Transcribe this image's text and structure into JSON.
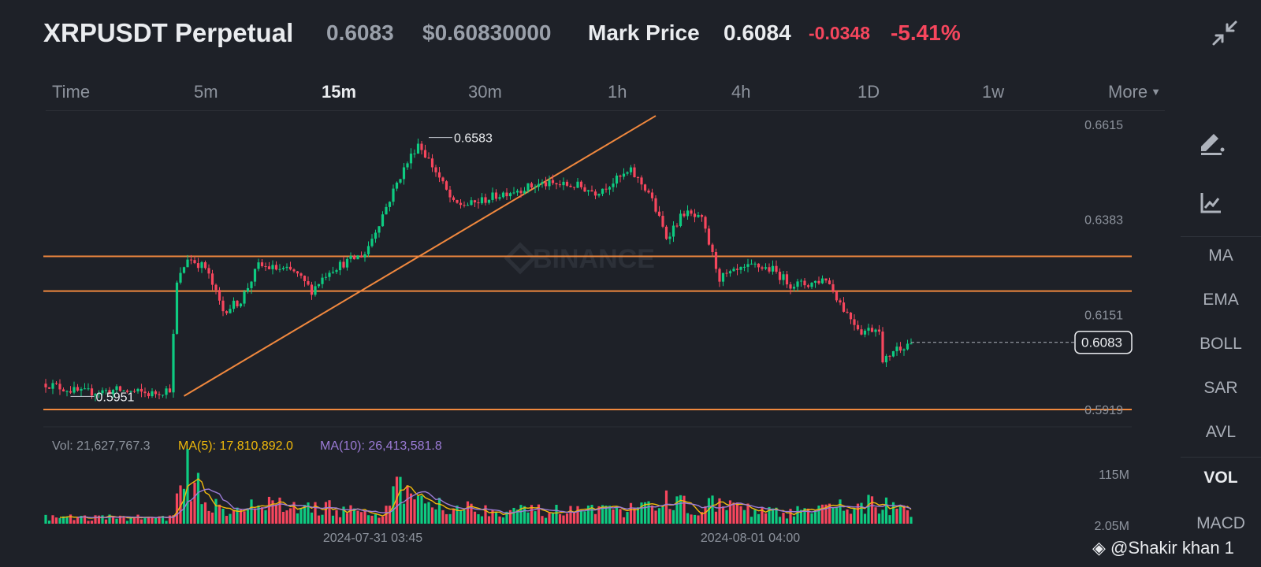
{
  "header": {
    "title": "XRPUSDT Perpetual",
    "last_price": "0.6083",
    "usd_price": "$0.60830000",
    "mark_price_label": "Mark Price",
    "mark_price": "0.6084",
    "change": "-0.0348",
    "change_pct": "-5.41%"
  },
  "tabs": [
    {
      "label": "Time",
      "active": false
    },
    {
      "label": "5m",
      "active": false
    },
    {
      "label": "15m",
      "active": true
    },
    {
      "label": "30m",
      "active": false
    },
    {
      "label": "1h",
      "active": false
    },
    {
      "label": "4h",
      "active": false
    },
    {
      "label": "1D",
      "active": false
    },
    {
      "label": "1w",
      "active": false
    },
    {
      "label": "More",
      "active": false
    }
  ],
  "indicators": [
    {
      "label": "MA",
      "active": false
    },
    {
      "label": "EMA",
      "active": false
    },
    {
      "label": "BOLL",
      "active": false
    },
    {
      "label": "SAR",
      "active": false
    },
    {
      "label": "AVL",
      "active": false
    },
    {
      "label": "VOL",
      "active": true
    },
    {
      "label": "MACD",
      "active": false
    }
  ],
  "tools": [
    "pencil-icon",
    "trend-chart-icon",
    "collapse-icon"
  ],
  "volume": {
    "label": "Vol: 21,627,767.3",
    "ma5": "MA(5): 17,810,892.0",
    "ma10": "MA(10): 26,413,581.8",
    "ma5_color": "#f0b90b",
    "ma10_color": "#9b7bd6",
    "axis_labels": [
      "115M",
      "2.05M"
    ]
  },
  "watermark": "BINANCE",
  "credit": "@Shakir khan 1",
  "colors": {
    "up": "#0ecb81",
    "down": "#f6465d",
    "lines": "#f0883e",
    "bg": "#1e2128"
  },
  "chart_data": {
    "type": "candlestick",
    "symbol": "XRPUSDT",
    "interval": "15m",
    "y_ticks": [
      "0.6615",
      "0.6383",
      "0.6151",
      "0.5919"
    ],
    "ylim": [
      0.5919,
      0.6615
    ],
    "x_ticks": [
      "2024-07-31 03:45",
      "2024-08-01 04:00"
    ],
    "current_price": "0.6083",
    "annotations": {
      "high": "0.6583",
      "low": "0.5951"
    },
    "horizontal_lines": [
      0.6293,
      0.6208,
      0.5919
    ],
    "trendline": {
      "from": 0.5952,
      "to": 0.6636
    },
    "close_path": [
      [
        0,
        0.5982
      ],
      [
        10,
        0.596
      ],
      [
        20,
        0.5966
      ],
      [
        30,
        0.5957
      ],
      [
        35,
        0.597
      ],
      [
        37,
        0.6225
      ],
      [
        40,
        0.629
      ],
      [
        45,
        0.6265
      ],
      [
        50,
        0.616
      ],
      [
        55,
        0.6185
      ],
      [
        60,
        0.627
      ],
      [
        70,
        0.6255
      ],
      [
        75,
        0.621
      ],
      [
        80,
        0.626
      ],
      [
        90,
        0.63
      ],
      [
        100,
        0.649
      ],
      [
        105,
        0.657
      ],
      [
        110,
        0.65
      ],
      [
        115,
        0.642
      ],
      [
        120,
        0.642
      ],
      [
        130,
        0.645
      ],
      [
        140,
        0.647
      ],
      [
        150,
        0.6465
      ],
      [
        155,
        0.645
      ],
      [
        160,
        0.6475
      ],
      [
        165,
        0.65
      ],
      [
        170,
        0.645
      ],
      [
        175,
        0.634
      ],
      [
        180,
        0.64
      ],
      [
        185,
        0.638
      ],
      [
        190,
        0.624
      ],
      [
        200,
        0.627
      ],
      [
        205,
        0.626
      ],
      [
        210,
        0.6225
      ],
      [
        215,
        0.6225
      ],
      [
        220,
        0.624
      ],
      [
        225,
        0.6165
      ],
      [
        230,
        0.611
      ],
      [
        235,
        0.612
      ],
      [
        236,
        0.603
      ],
      [
        239,
        0.6065
      ],
      [
        244,
        0.6083
      ]
    ],
    "volume_path": [
      [
        0,
        4
      ],
      [
        36,
        4
      ],
      [
        38,
        28
      ],
      [
        40,
        32
      ],
      [
        44,
        18
      ],
      [
        50,
        10
      ],
      [
        60,
        12
      ],
      [
        80,
        10
      ],
      [
        95,
        5
      ],
      [
        100,
        24
      ],
      [
        105,
        16
      ],
      [
        110,
        14
      ],
      [
        120,
        10
      ],
      [
        140,
        8
      ],
      [
        160,
        8
      ],
      [
        170,
        10
      ],
      [
        175,
        20
      ],
      [
        180,
        12
      ],
      [
        190,
        12
      ],
      [
        200,
        8
      ],
      [
        210,
        7
      ],
      [
        220,
        9
      ],
      [
        225,
        12
      ],
      [
        235,
        13
      ],
      [
        240,
        10
      ],
      [
        244,
        6
      ]
    ]
  }
}
